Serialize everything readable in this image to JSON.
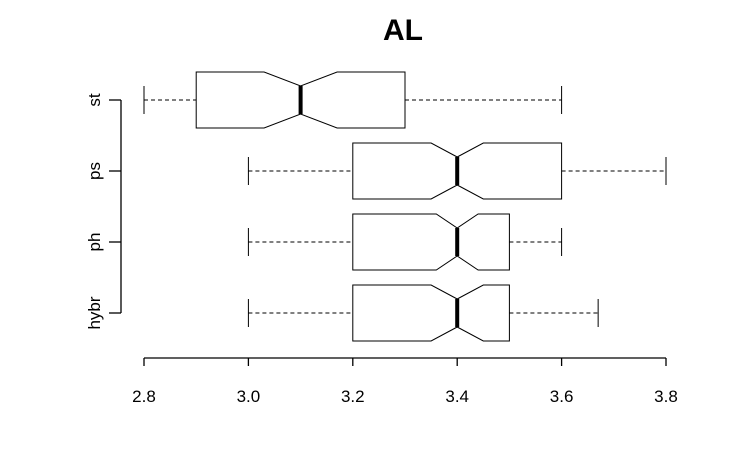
{
  "chart_data": {
    "type": "boxplot",
    "title": "AL",
    "orientation": "horizontal",
    "notched": true,
    "xlim": [
      2.8,
      3.8
    ],
    "xticks": [
      "2.8",
      "3.0",
      "3.2",
      "3.4",
      "3.6",
      "3.8"
    ],
    "xlabel": "",
    "ylabel": "",
    "groups": [
      {
        "label": "hybr",
        "min": 3.0,
        "q1": 3.2,
        "median": 3.4,
        "q3": 3.5,
        "max": 3.67,
        "notch_low": 3.35,
        "notch_high": 3.45
      },
      {
        "label": "ph",
        "min": 3.0,
        "q1": 3.2,
        "median": 3.4,
        "q3": 3.5,
        "max": 3.6,
        "notch_low": 3.36,
        "notch_high": 3.44
      },
      {
        "label": "ps",
        "min": 3.0,
        "q1": 3.2,
        "median": 3.4,
        "q3": 3.6,
        "max": 3.8,
        "notch_low": 3.35,
        "notch_high": 3.45
      },
      {
        "label": "st",
        "min": 2.8,
        "q1": 2.9,
        "median": 3.1,
        "q3": 3.3,
        "max": 3.6,
        "notch_low": 3.03,
        "notch_high": 3.17
      }
    ]
  }
}
